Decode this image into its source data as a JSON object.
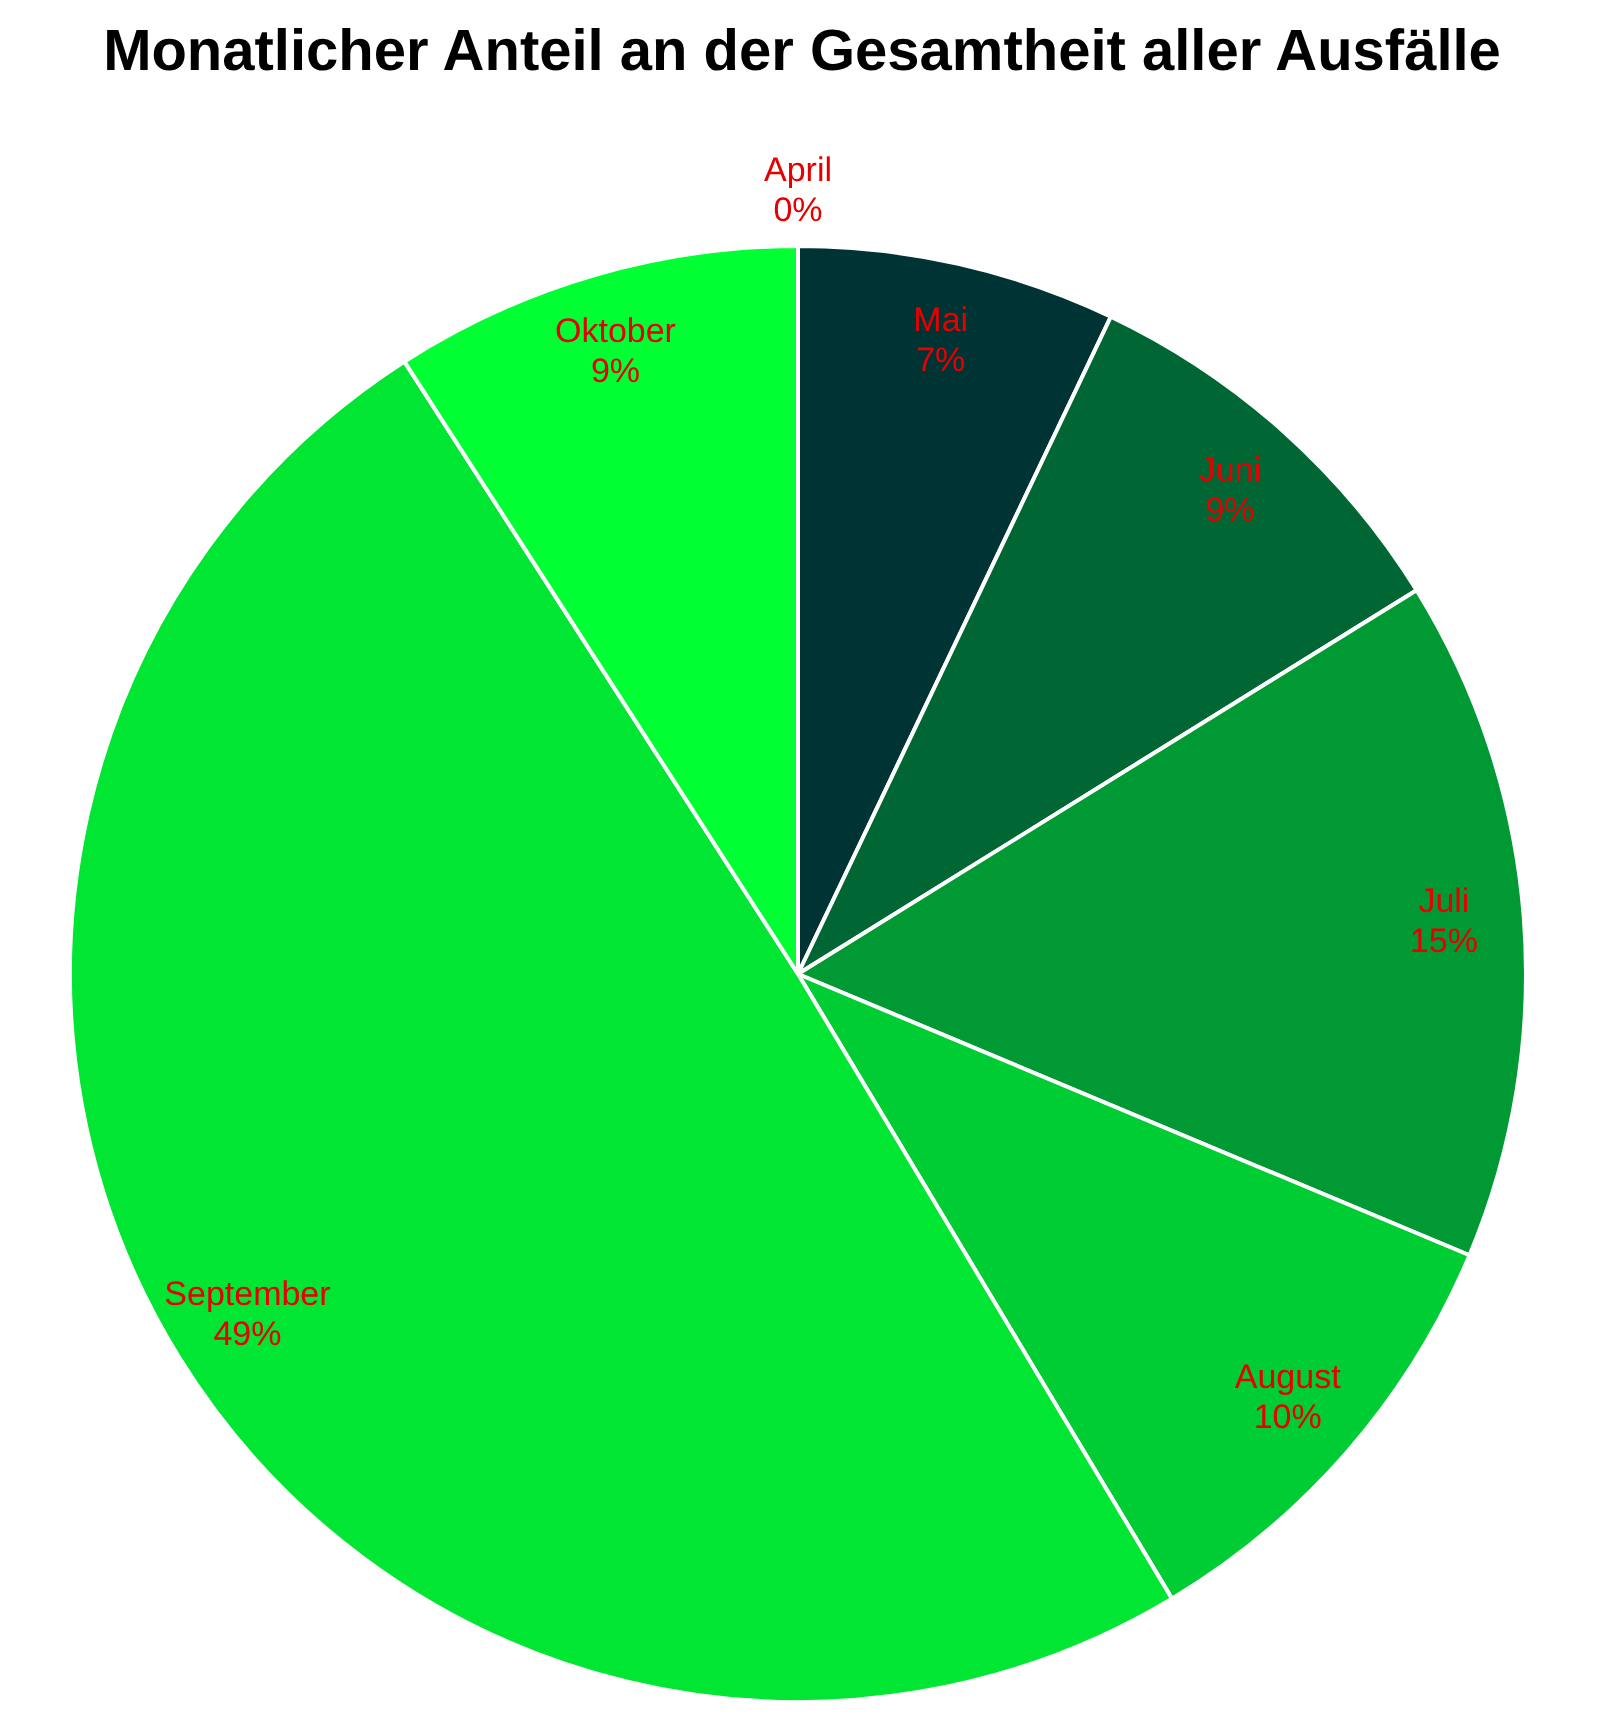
{
  "chart_data": {
    "type": "pie",
    "title": "Monatlicher Anteil an der Gesamtheit aller Ausfälle",
    "categories": [
      "April",
      "Mai",
      "Juni",
      "Juli",
      "August",
      "September",
      "Oktober"
    ],
    "values": [
      0,
      7,
      9,
      15,
      10,
      49,
      9
    ],
    "value_labels": [
      "0%",
      "7%",
      "9%",
      "15%",
      "10%",
      "49%",
      "9%"
    ],
    "colors": [
      "#001a1a",
      "#003333",
      "#006633",
      "#009933",
      "#00cc33",
      "#00e633",
      "#00ff33"
    ],
    "legend": false
  }
}
